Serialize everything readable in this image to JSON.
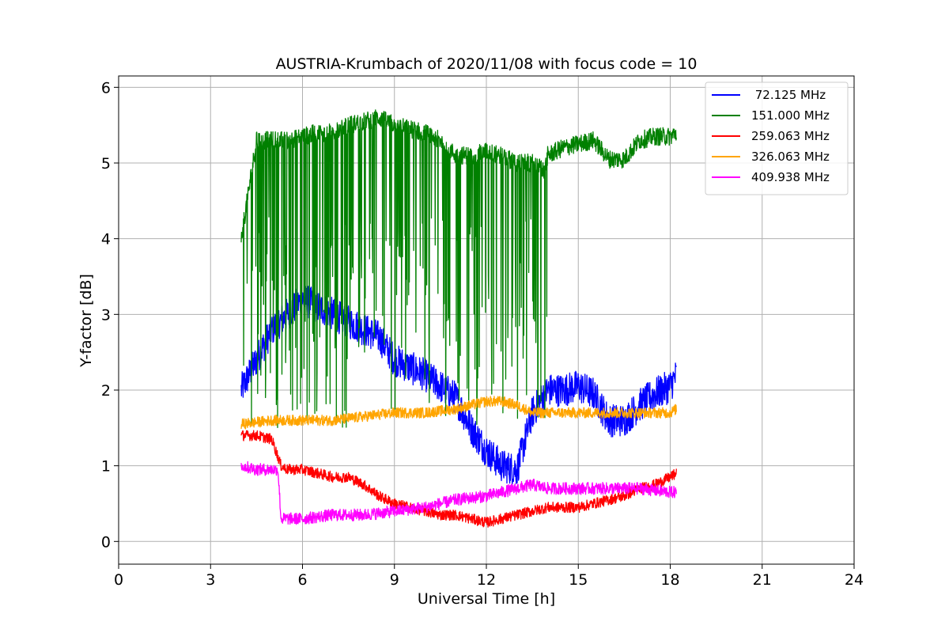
{
  "chart_data": {
    "type": "line",
    "title": "AUSTRIA-Krumbach of 2020/11/08 with focus code = 10",
    "xlabel": "Universal Time [h]",
    "ylabel": "Y-factor [dB]",
    "xlim": [
      0,
      24
    ],
    "ylim": [
      -0.3,
      6.15
    ],
    "xticks": [
      "0",
      "3",
      "6",
      "9",
      "12",
      "15",
      "18",
      "21",
      "24"
    ],
    "yticks": [
      "0",
      "1",
      "2",
      "3",
      "4",
      "5",
      "6"
    ],
    "grid": true,
    "legend_position": "top-right",
    "series": [
      {
        "name": " 72.125 MHz",
        "color": "#0000ff",
        "x": [
          4.0,
          4.5,
          5.0,
          5.5,
          6.0,
          6.5,
          7.0,
          7.5,
          8.0,
          8.5,
          9.0,
          9.5,
          10.0,
          10.5,
          11.0,
          11.5,
          12.0,
          12.5,
          13.0,
          13.5,
          14.0,
          14.5,
          15.0,
          15.5,
          16.0,
          16.5,
          17.0,
          17.5,
          18.0,
          18.2
        ],
        "y": [
          2.0,
          2.4,
          2.8,
          3.0,
          3.2,
          3.1,
          3.0,
          2.9,
          2.8,
          2.7,
          2.4,
          2.3,
          2.2,
          2.05,
          1.9,
          1.5,
          1.2,
          1.0,
          0.95,
          1.7,
          2.0,
          2.0,
          2.05,
          1.95,
          1.6,
          1.6,
          1.8,
          1.95,
          2.05,
          2.2
        ],
        "noise": 0.22
      },
      {
        "name": "151.000 MHz",
        "color": "#008000",
        "x": [
          4.0,
          4.5,
          5.0,
          5.5,
          6.0,
          6.5,
          7.0,
          7.5,
          8.0,
          8.5,
          9.0,
          9.5,
          10.0,
          10.5,
          11.0,
          11.5,
          12.0,
          12.5,
          13.0,
          13.5,
          13.9,
          14.0,
          14.5,
          15.0,
          15.5,
          16.0,
          16.5,
          17.0,
          17.5,
          18.0,
          18.2
        ],
        "y": [
          4.0,
          5.3,
          5.3,
          5.3,
          5.35,
          5.4,
          5.4,
          5.5,
          5.55,
          5.6,
          5.5,
          5.45,
          5.4,
          5.3,
          5.1,
          5.1,
          5.15,
          5.1,
          5.0,
          5.0,
          4.9,
          5.1,
          5.2,
          5.25,
          5.3,
          5.05,
          5.05,
          5.3,
          5.35,
          5.35,
          5.4
        ],
        "noise": 0.12
      },
      {
        "name": "259.063 MHz",
        "color": "#ff0000",
        "x": [
          4.0,
          4.5,
          5.0,
          5.3,
          5.5,
          6.0,
          6.5,
          7.0,
          7.5,
          8.0,
          8.5,
          9.0,
          9.5,
          10.0,
          10.5,
          11.0,
          11.5,
          12.0,
          12.5,
          13.0,
          13.5,
          14.0,
          14.5,
          15.0,
          15.5,
          16.0,
          16.5,
          17.0,
          17.5,
          18.0,
          18.2
        ],
        "y": [
          1.4,
          1.4,
          1.35,
          1.0,
          0.95,
          0.95,
          0.9,
          0.85,
          0.85,
          0.75,
          0.6,
          0.5,
          0.45,
          0.4,
          0.35,
          0.35,
          0.3,
          0.25,
          0.3,
          0.35,
          0.4,
          0.45,
          0.45,
          0.45,
          0.5,
          0.55,
          0.6,
          0.7,
          0.75,
          0.85,
          0.9
        ],
        "noise": 0.07
      },
      {
        "name": "326.063 MHz",
        "color": "#ffa500",
        "x": [
          4.0,
          5.0,
          6.0,
          7.0,
          8.0,
          9.0,
          10.0,
          11.0,
          12.0,
          12.5,
          13.0,
          13.5,
          14.0,
          15.0,
          16.0,
          17.0,
          18.0,
          18.2
        ],
        "y": [
          1.55,
          1.6,
          1.6,
          1.6,
          1.65,
          1.7,
          1.7,
          1.75,
          1.85,
          1.85,
          1.8,
          1.7,
          1.7,
          1.7,
          1.7,
          1.7,
          1.7,
          1.75
        ],
        "noise": 0.07
      },
      {
        "name": "409.938 MHz",
        "color": "#ff00ff",
        "x": [
          4.0,
          4.5,
          5.0,
          5.2,
          5.3,
          6.0,
          7.0,
          8.0,
          9.0,
          10.0,
          11.0,
          12.0,
          12.5,
          13.0,
          13.5,
          14.0,
          15.0,
          16.0,
          17.0,
          18.0,
          18.2
        ],
        "y": [
          1.0,
          0.95,
          0.95,
          0.95,
          0.3,
          0.3,
          0.35,
          0.35,
          0.4,
          0.45,
          0.55,
          0.6,
          0.65,
          0.7,
          0.75,
          0.7,
          0.7,
          0.7,
          0.7,
          0.65,
          0.65
        ],
        "noise": 0.08
      }
    ]
  }
}
